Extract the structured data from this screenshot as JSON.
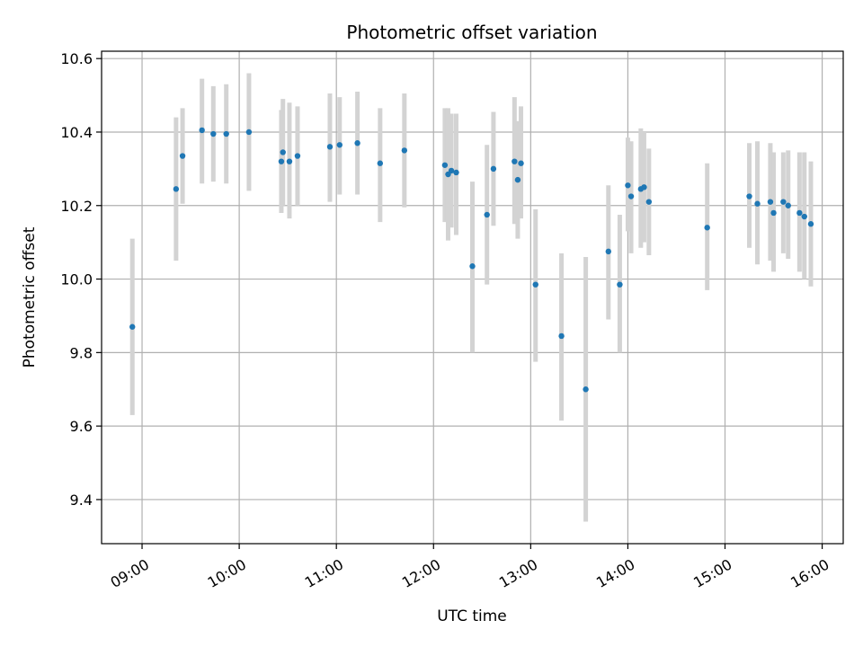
{
  "chart_data": {
    "type": "scatter",
    "title": "Photometric offset variation",
    "xlabel": "UTC time",
    "ylabel": "Photometric offset",
    "x_ticks": [
      "09:00",
      "10:00",
      "11:00",
      "12:00",
      "13:00",
      "14:00",
      "15:00",
      "16:00"
    ],
    "y_ticks": [
      "9.4",
      "9.6",
      "9.8",
      "10.0",
      "10.2",
      "10.4",
      "10.6"
    ],
    "xlim": [
      "08:35",
      "16:13"
    ],
    "ylim": [
      9.28,
      10.62
    ],
    "grid": true,
    "colors": {
      "points": "#1f77b4",
      "errorbars": "#d3d3d3",
      "grid": "#b0b0b0"
    },
    "series": [
      {
        "points": [
          {
            "x": "08:54",
            "y": 9.87,
            "lo": 9.63,
            "hi": 10.11
          },
          {
            "x": "09:21",
            "y": 10.245,
            "lo": 10.05,
            "hi": 10.44
          },
          {
            "x": "09:25",
            "y": 10.335,
            "lo": 10.205,
            "hi": 10.465
          },
          {
            "x": "09:37",
            "y": 10.405,
            "lo": 10.26,
            "hi": 10.545
          },
          {
            "x": "09:44",
            "y": 10.395,
            "lo": 10.265,
            "hi": 10.525
          },
          {
            "x": "09:52",
            "y": 10.395,
            "lo": 10.26,
            "hi": 10.53
          },
          {
            "x": "10:06",
            "y": 10.4,
            "lo": 10.24,
            "hi": 10.56
          },
          {
            "x": "10:26",
            "y": 10.32,
            "lo": 10.18,
            "hi": 10.46
          },
          {
            "x": "10:27",
            "y": 10.345,
            "lo": 10.2,
            "hi": 10.49
          },
          {
            "x": "10:31",
            "y": 10.32,
            "lo": 10.165,
            "hi": 10.48
          },
          {
            "x": "10:36",
            "y": 10.335,
            "lo": 10.2,
            "hi": 10.47
          },
          {
            "x": "10:56",
            "y": 10.36,
            "lo": 10.21,
            "hi": 10.505
          },
          {
            "x": "11:02",
            "y": 10.365,
            "lo": 10.23,
            "hi": 10.495
          },
          {
            "x": "11:13",
            "y": 10.37,
            "lo": 10.23,
            "hi": 10.51
          },
          {
            "x": "11:27",
            "y": 10.315,
            "lo": 10.155,
            "hi": 10.465
          },
          {
            "x": "11:42",
            "y": 10.35,
            "lo": 10.195,
            "hi": 10.505
          },
          {
            "x": "12:07",
            "y": 10.31,
            "lo": 10.155,
            "hi": 10.465
          },
          {
            "x": "12:09",
            "y": 10.285,
            "lo": 10.105,
            "hi": 10.465
          },
          {
            "x": "12:11",
            "y": 10.295,
            "lo": 10.14,
            "hi": 10.45
          },
          {
            "x": "12:14",
            "y": 10.29,
            "lo": 10.12,
            "hi": 10.45
          },
          {
            "x": "12:24",
            "y": 10.035,
            "lo": 9.8,
            "hi": 10.265
          },
          {
            "x": "12:33",
            "y": 10.175,
            "lo": 9.985,
            "hi": 10.365
          },
          {
            "x": "12:37",
            "y": 10.3,
            "lo": 10.145,
            "hi": 10.455
          },
          {
            "x": "12:50",
            "y": 10.32,
            "lo": 10.15,
            "hi": 10.495
          },
          {
            "x": "12:52",
            "y": 10.27,
            "lo": 10.11,
            "hi": 10.43
          },
          {
            "x": "12:54",
            "y": 10.315,
            "lo": 10.165,
            "hi": 10.47
          },
          {
            "x": "13:03",
            "y": 9.985,
            "lo": 9.775,
            "hi": 10.19
          },
          {
            "x": "13:19",
            "y": 9.845,
            "lo": 9.615,
            "hi": 10.07
          },
          {
            "x": "13:34",
            "y": 9.7,
            "lo": 9.34,
            "hi": 10.06
          },
          {
            "x": "13:48",
            "y": 10.075,
            "lo": 9.89,
            "hi": 10.255
          },
          {
            "x": "13:55",
            "y": 9.985,
            "lo": 9.8,
            "hi": 10.175
          },
          {
            "x": "14:00",
            "y": 10.255,
            "lo": 10.13,
            "hi": 10.385
          },
          {
            "x": "14:02",
            "y": 10.225,
            "lo": 10.07,
            "hi": 10.375
          },
          {
            "x": "14:08",
            "y": 10.245,
            "lo": 10.085,
            "hi": 10.41
          },
          {
            "x": "14:10",
            "y": 10.25,
            "lo": 10.1,
            "hi": 10.4
          },
          {
            "x": "14:13",
            "y": 10.21,
            "lo": 10.065,
            "hi": 10.355
          },
          {
            "x": "14:49",
            "y": 10.14,
            "lo": 9.97,
            "hi": 10.315
          },
          {
            "x": "15:15",
            "y": 10.225,
            "lo": 10.085,
            "hi": 10.37
          },
          {
            "x": "15:20",
            "y": 10.205,
            "lo": 10.04,
            "hi": 10.375
          },
          {
            "x": "15:28",
            "y": 10.21,
            "lo": 10.05,
            "hi": 10.37
          },
          {
            "x": "15:30",
            "y": 10.18,
            "lo": 10.02,
            "hi": 10.345
          },
          {
            "x": "15:36",
            "y": 10.21,
            "lo": 10.07,
            "hi": 10.345
          },
          {
            "x": "15:39",
            "y": 10.2,
            "lo": 10.055,
            "hi": 10.35
          },
          {
            "x": "15:46",
            "y": 10.18,
            "lo": 10.02,
            "hi": 10.345
          },
          {
            "x": "15:49",
            "y": 10.17,
            "lo": 10.0,
            "hi": 10.345
          },
          {
            "x": "15:53",
            "y": 10.15,
            "lo": 9.98,
            "hi": 10.32
          }
        ]
      }
    ]
  }
}
